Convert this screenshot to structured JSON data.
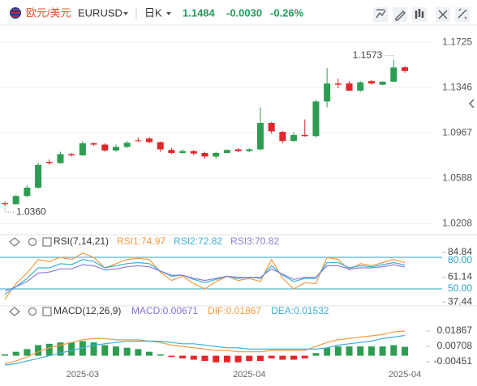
{
  "header": {
    "name": "欧元/美元",
    "symbol": "EURUSD",
    "period": "日K",
    "price": "1.1484",
    "change": "-0.0030",
    "change_pct": "-0.26%"
  },
  "chart_data": [
    {
      "type": "candlestick",
      "categories": [
        null,
        null,
        null,
        null,
        null,
        null,
        null,
        "2025-03",
        null,
        null,
        null,
        null,
        null,
        null,
        null,
        null,
        null,
        null,
        null,
        null,
        null,
        null,
        "2025-04",
        null,
        null,
        null,
        null,
        null,
        null,
        null,
        null,
        null,
        null,
        null,
        null,
        null,
        "2025-04"
      ],
      "open": [
        1.038,
        1.0372,
        1.044,
        1.051,
        1.0725,
        1.0715,
        1.079,
        1.078,
        1.088,
        1.087,
        1.082,
        1.085,
        1.0905,
        1.092,
        1.089,
        1.0825,
        1.08,
        1.0815,
        1.08,
        1.077,
        1.08,
        1.083,
        1.0815,
        1.083,
        1.105,
        1.0975,
        1.09,
        1.095,
        1.094,
        1.123,
        1.138,
        1.138,
        1.132,
        1.14,
        1.137,
        1.1395,
        1.1515
      ],
      "high": [
        1.0395,
        1.045,
        1.053,
        1.072,
        1.0745,
        1.081,
        1.08,
        1.09,
        1.089,
        1.088,
        1.087,
        1.09,
        1.093,
        1.0935,
        1.0895,
        1.084,
        1.083,
        1.0825,
        1.081,
        1.081,
        1.083,
        1.084,
        1.084,
        1.118,
        1.106,
        1.0985,
        1.0975,
        1.108,
        1.1245,
        1.151,
        1.142,
        1.14,
        1.14,
        1.141,
        1.14,
        1.1573,
        1.1525
      ],
      "low": [
        1.036,
        1.037,
        1.043,
        1.05,
        1.07,
        1.071,
        1.077,
        1.0775,
        1.086,
        1.081,
        1.081,
        1.084,
        1.089,
        1.088,
        1.081,
        1.079,
        1.079,
        1.078,
        1.075,
        1.075,
        1.0795,
        1.0805,
        1.0805,
        1.082,
        1.096,
        1.088,
        1.089,
        1.0935,
        1.093,
        1.118,
        1.134,
        1.132,
        1.131,
        1.137,
        1.1365,
        1.139,
        1.147
      ],
      "close": [
        1.0372,
        1.044,
        1.051,
        1.07,
        1.0715,
        1.079,
        1.078,
        1.088,
        1.087,
        1.082,
        1.085,
        1.0885,
        1.09,
        1.089,
        1.083,
        1.08,
        1.0815,
        1.0795,
        1.077,
        1.08,
        1.0825,
        1.0815,
        1.083,
        1.105,
        1.098,
        1.09,
        1.095,
        1.094,
        1.123,
        1.138,
        1.137,
        1.132,
        1.139,
        1.138,
        1.1395,
        1.1514,
        1.1484
      ],
      "up_color": "#2e9d52",
      "down_color": "#e3262a",
      "ylim": [
        1.0151,
        1.1807
      ],
      "yticks": [
        1.0208,
        1.0588,
        1.0967,
        1.1346,
        1.1725
      ],
      "grid": true,
      "annotations": [
        1.1573,
        {
          "value": 1.036,
          "label": "1.0360"
        }
      ]
    },
    {
      "type": "line",
      "title": "RSI(7,14,21)",
      "series": [
        {
          "name": "RSI1:74.97",
          "color": "#f39a3d",
          "values": [
            40,
            55,
            65,
            78,
            76,
            80,
            78,
            84,
            80,
            70,
            74,
            78,
            79,
            78,
            66,
            58,
            62,
            55,
            50,
            57,
            62,
            58,
            60,
            57,
            78,
            60,
            50,
            56,
            55,
            80,
            78,
            68,
            74,
            72,
            75,
            78,
            74.97
          ]
        },
        {
          "name": "RSI2:72.82",
          "color": "#3ab0d8",
          "values": [
            45,
            52,
            60,
            70,
            70,
            74,
            73,
            78,
            76,
            70,
            72,
            74,
            75,
            74,
            67,
            62,
            63,
            59,
            56,
            59,
            62,
            60,
            61,
            60,
            72,
            63,
            57,
            60,
            60,
            75,
            75,
            70,
            72,
            71,
            73,
            75,
            72.82
          ]
        },
        {
          "name": "RSI3:70.82",
          "color": "#8a7fd6",
          "values": [
            48,
            52,
            57,
            65,
            66,
            69,
            69,
            73,
            72,
            68,
            69,
            71,
            72,
            71,
            67,
            63,
            63,
            60,
            58,
            60,
            62,
            61,
            61,
            61,
            69,
            64,
            59,
            61,
            61,
            72,
            72,
            69,
            70,
            70,
            71,
            73,
            70.82
          ]
        }
      ],
      "ylim": [
        35.4,
        87.7
      ],
      "yticks": [
        37.44,
        61.14,
        84.84
      ],
      "levels": [
        {
          "value": 80,
          "label": "80.00"
        },
        {
          "value": 50,
          "label": "50.00"
        }
      ],
      "level_color": "#2aa3c7"
    },
    {
      "type": "macd",
      "title": "MACD(12,26,9)",
      "series": [
        {
          "name": "MACD:0.00671",
          "type": "bar",
          "color": "#8a6fd1",
          "up_color": "#2e9d52",
          "down_color": "#e3262a",
          "values": [
            0.001,
            0.003,
            0.005,
            0.008,
            0.009,
            0.01,
            0.01,
            0.011,
            0.01,
            0.008,
            0.007,
            0.006,
            0.005,
            0.003,
            0.001,
            -0.001,
            -0.002,
            -0.003,
            -0.004,
            -0.005,
            -0.005,
            -0.005,
            -0.004,
            -0.004,
            -0.002,
            -0.003,
            -0.003,
            -0.002,
            0.002,
            0.006,
            0.007,
            0.007,
            0.007,
            0.007,
            0.007,
            0.008,
            0.00671
          ]
        },
        {
          "name": "DIF:0.01867",
          "type": "line",
          "color": "#f39a3d",
          "values": [
            -0.006,
            -0.004,
            -0.001,
            0.003,
            0.006,
            0.008,
            0.01,
            0.012,
            0.013,
            0.013,
            0.012,
            0.012,
            0.012,
            0.011,
            0.01,
            0.008,
            0.007,
            0.006,
            0.005,
            0.004,
            0.004,
            0.003,
            0.003,
            0.003,
            0.004,
            0.004,
            0.004,
            0.004,
            0.007,
            0.01,
            0.012,
            0.013,
            0.014,
            0.015,
            0.016,
            0.018,
            0.01867
          ]
        },
        {
          "name": "DEA:0.01532",
          "type": "line",
          "color": "#3ab0d8",
          "values": [
            -0.007,
            -0.006,
            -0.004,
            -0.002,
            0.0,
            0.002,
            0.004,
            0.006,
            0.008,
            0.009,
            0.01,
            0.011,
            0.011,
            0.011,
            0.011,
            0.01,
            0.009,
            0.009,
            0.008,
            0.007,
            0.006,
            0.006,
            0.005,
            0.005,
            0.005,
            0.005,
            0.005,
            0.005,
            0.005,
            0.006,
            0.008,
            0.009,
            0.01,
            0.011,
            0.013,
            0.014,
            0.01532
          ]
        }
      ],
      "ylim": [
        -0.0094,
        0.0272
      ],
      "yticks": [
        -0.00451,
        0.00708,
        0.01867
      ]
    }
  ]
}
